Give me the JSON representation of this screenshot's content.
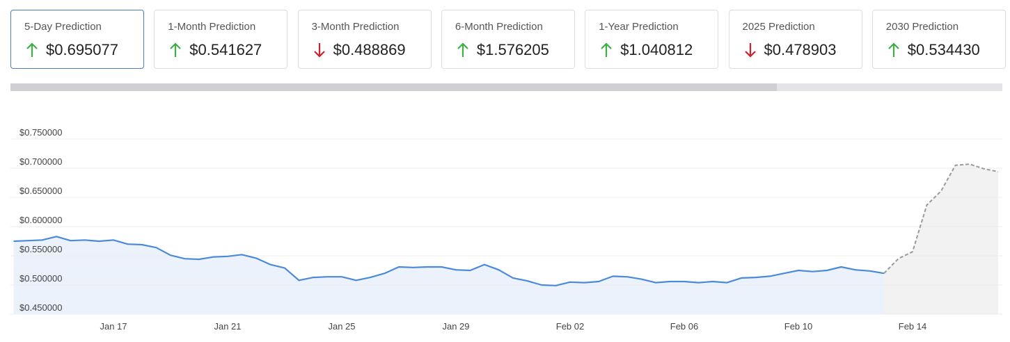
{
  "cards": [
    {
      "label": "5-Day Prediction",
      "value": "$0.695077",
      "direction": "up",
      "selected": true
    },
    {
      "label": "1-Month Prediction",
      "value": "$0.541627",
      "direction": "up",
      "selected": false
    },
    {
      "label": "3-Month Prediction",
      "value": "$0.488869",
      "direction": "down",
      "selected": false
    },
    {
      "label": "6-Month Prediction",
      "value": "$1.576205",
      "direction": "up",
      "selected": false
    },
    {
      "label": "1-Year Prediction",
      "value": "$1.040812",
      "direction": "up",
      "selected": false
    },
    {
      "label": "2025 Prediction",
      "value": "$0.478903",
      "direction": "down",
      "selected": false
    },
    {
      "label": "2030 Prediction",
      "value": "$0.534430",
      "direction": "up",
      "selected": false
    }
  ],
  "chart_data": {
    "type": "line",
    "categories": [
      null,
      null,
      null,
      null,
      null,
      null,
      null,
      "Jan 17",
      null,
      null,
      null,
      null,
      null,
      null,
      null,
      "Jan 21",
      null,
      null,
      null,
      null,
      null,
      null,
      null,
      "Jan 25",
      null,
      null,
      null,
      null,
      null,
      null,
      null,
      "Jan 29",
      null,
      null,
      null,
      null,
      null,
      null,
      null,
      "Feb 02",
      null,
      null,
      null,
      null,
      null,
      null,
      null,
      "Feb 06",
      null,
      null,
      null,
      null,
      null,
      null,
      null,
      "Feb 10",
      null,
      null,
      null,
      null,
      null,
      null,
      null,
      "Feb 14",
      null,
      null,
      null,
      null,
      null,
      null
    ],
    "series": [
      {
        "color": "#4a8ad9",
        "fill": "#ebf2fc",
        "dashed": false,
        "values": [
          0.575,
          0.576,
          0.577,
          0.583,
          0.576,
          0.577,
          0.575,
          0.577,
          0.57,
          0.569,
          0.564,
          0.551,
          0.545,
          0.544,
          0.548,
          0.549,
          0.552,
          0.546,
          0.535,
          0.529,
          0.508,
          0.513,
          0.514,
          0.514,
          0.508,
          0.513,
          0.52,
          0.531,
          0.53,
          0.531,
          0.531,
          0.526,
          0.525,
          0.535,
          0.526,
          0.512,
          0.507,
          0.5,
          0.499,
          0.505,
          0.504,
          0.506,
          0.515,
          0.514,
          0.51,
          0.504,
          0.506,
          0.506,
          0.504,
          0.506,
          0.504,
          0.512,
          0.513,
          0.515,
          0.52,
          0.525,
          0.523,
          0.525,
          0.531,
          0.526,
          0.524,
          0.52,
          null,
          null,
          null,
          null,
          null,
          null,
          null,
          null
        ]
      },
      {
        "color": "#999999",
        "fill": "#f2f2f2",
        "dashed": true,
        "values": [
          null,
          null,
          null,
          null,
          null,
          null,
          null,
          null,
          null,
          null,
          null,
          null,
          null,
          null,
          null,
          null,
          null,
          null,
          null,
          null,
          null,
          null,
          null,
          null,
          null,
          null,
          null,
          null,
          null,
          null,
          null,
          null,
          null,
          null,
          null,
          null,
          null,
          null,
          null,
          null,
          null,
          null,
          null,
          null,
          null,
          null,
          null,
          null,
          null,
          null,
          null,
          null,
          null,
          null,
          null,
          null,
          null,
          null,
          null,
          null,
          null,
          0.52,
          0.545,
          0.557,
          0.637,
          0.661,
          0.705,
          0.707,
          0.699,
          0.694
        ]
      }
    ],
    "ylim": [
      0.45,
      0.75
    ],
    "yticks": [
      {
        "value": 0.45,
        "label": "$0.450000"
      },
      {
        "value": 0.5,
        "label": "$0.500000"
      },
      {
        "value": 0.55,
        "label": "$0.550000"
      },
      {
        "value": 0.6,
        "label": "$0.600000"
      },
      {
        "value": 0.65,
        "label": "$0.650000"
      },
      {
        "value": 0.7,
        "label": "$0.700000"
      },
      {
        "value": 0.75,
        "label": "$0.750000"
      }
    ],
    "grid": true
  }
}
